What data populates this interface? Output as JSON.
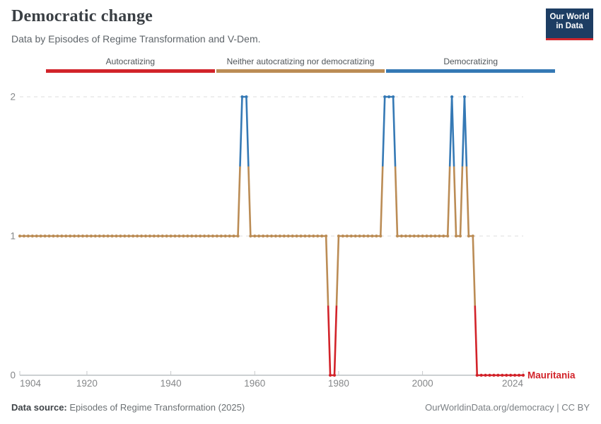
{
  "header": {
    "title": "Democratic change",
    "subtitle": "Data by Episodes of Regime Transformation and V-Dem.",
    "logo_line1": "Our World",
    "logo_line2": "in Data"
  },
  "legend": {
    "items": [
      {
        "label": "Autocratizing",
        "color": "#d2232a"
      },
      {
        "label": "Neither autocratizing nor democratizing",
        "color": "#bb8c55"
      },
      {
        "label": "Democratizing",
        "color": "#3579b5"
      }
    ]
  },
  "chart_data": {
    "type": "line",
    "title": "Democratic change",
    "entity": "Mauritania",
    "x_range": [
      1904,
      2024
    ],
    "x_ticks": [
      1904,
      1920,
      1940,
      1960,
      1980,
      2000,
      2024
    ],
    "y_ticks": [
      0,
      1,
      2
    ],
    "grid": "dashed horizontal at y=1 and y=2, solid axis at y=0",
    "legend_position": "top",
    "value_meanings": {
      "0": "Autocratizing",
      "1": "Neither autocratizing nor democratizing",
      "2": "Democratizing"
    },
    "colors_by_value": {
      "0": "#d2232a",
      "1": "#bb8c55",
      "2": "#3579b5"
    },
    "segments": [
      {
        "from": 1904,
        "to": 1956,
        "value": 1
      },
      {
        "from": 1957,
        "to": 1958,
        "value": 2
      },
      {
        "from": 1959,
        "to": 1977,
        "value": 1
      },
      {
        "from": 1978,
        "to": 1979,
        "value": 0
      },
      {
        "from": 1980,
        "to": 1990,
        "value": 1
      },
      {
        "from": 1991,
        "to": 1993,
        "value": 2
      },
      {
        "from": 1994,
        "to": 2006,
        "value": 1
      },
      {
        "from": 2007,
        "to": 2007,
        "value": 2
      },
      {
        "from": 2008,
        "to": 2009,
        "value": 1
      },
      {
        "from": 2010,
        "to": 2010,
        "value": 2
      },
      {
        "from": 2011,
        "to": 2012,
        "value": 1
      },
      {
        "from": 2013,
        "to": 2024,
        "value": 0
      }
    ]
  },
  "footer": {
    "source_label": "Data source:",
    "source_text": " Episodes of Regime Transformation (2025)",
    "credit": "OurWorldinData.org/democracy | CC BY"
  }
}
